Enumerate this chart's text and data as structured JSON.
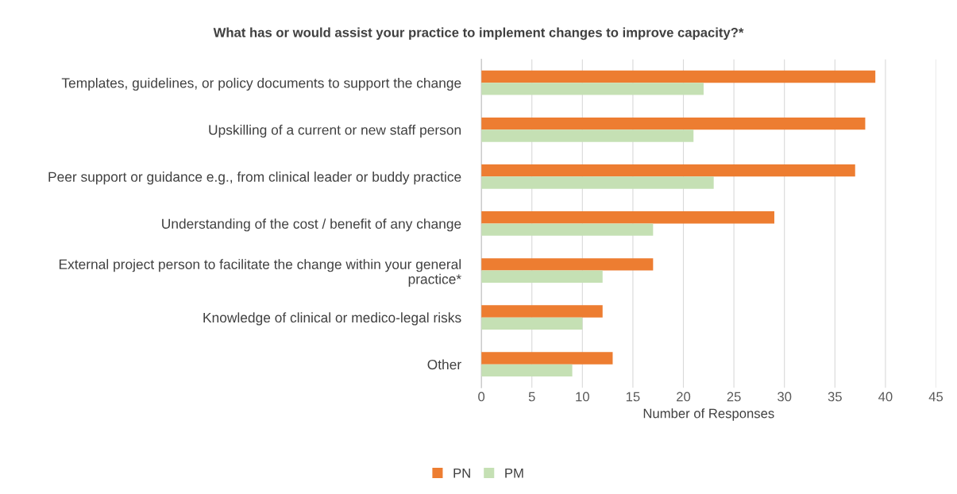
{
  "chart_data": {
    "type": "bar",
    "orientation": "horizontal",
    "title": "What has or would assist your practice to implement changes to improve capacity?*",
    "xlabel": "Number of Responses",
    "categories": [
      "Templates, guidelines, or policy documents to support the change",
      "Upskilling of a current or new staff person",
      "Peer support or guidance e.g., from clinical leader or buddy practice",
      "Understanding of the cost / benefit of any change",
      "External project person to facilitate the change within your general\npractice*",
      "Knowledge of clinical or medico-legal risks",
      "Other"
    ],
    "series": [
      {
        "name": "PN",
        "color": "#ed7d31",
        "values": [
          39,
          38,
          37,
          29,
          17,
          12,
          13
        ]
      },
      {
        "name": "PM",
        "color": "#c5e0b4",
        "values": [
          22,
          21,
          23,
          17,
          12,
          10,
          9
        ]
      }
    ],
    "xlim": [
      0,
      45
    ],
    "xticks": [
      0,
      5,
      10,
      15,
      20,
      25,
      30,
      35,
      40,
      45
    ],
    "grid": "x",
    "legend": "bottom"
  }
}
